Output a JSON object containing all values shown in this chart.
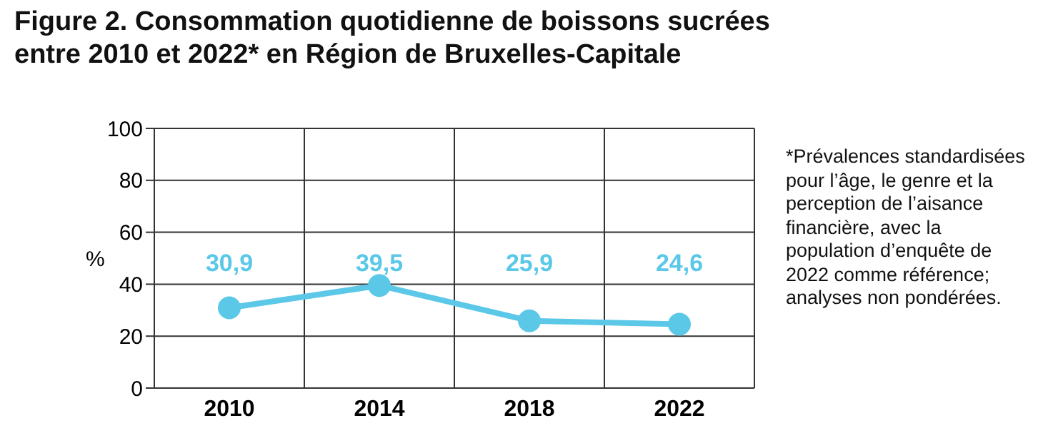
{
  "chart_data": {
    "type": "line",
    "title": "Figure 2. Consommation quotidienne de boissons sucrées\nentre 2010 et 2022* en Région de Bruxelles-Capitale",
    "ylabel": "%",
    "categories": [
      "2010",
      "2014",
      "2018",
      "2022"
    ],
    "series": [
      {
        "color": "#5bc8e8",
        "values": [
          30.9,
          39.5,
          25.9,
          24.6
        ],
        "value_labels": [
          "30,9",
          "39,5",
          "25,9",
          "24,6"
        ]
      }
    ],
    "ylim": [
      0,
      100
    ],
    "yticks": [
      0,
      20,
      40,
      60,
      80,
      100
    ],
    "grid": true,
    "marker": "circle",
    "annotations": [
      "*Prévalences standardisées pour l’âge, le genre et la perception de l’aisance financière, avec la population d’enquête de 2022 comme référence; analyses non pondérées."
    ]
  }
}
